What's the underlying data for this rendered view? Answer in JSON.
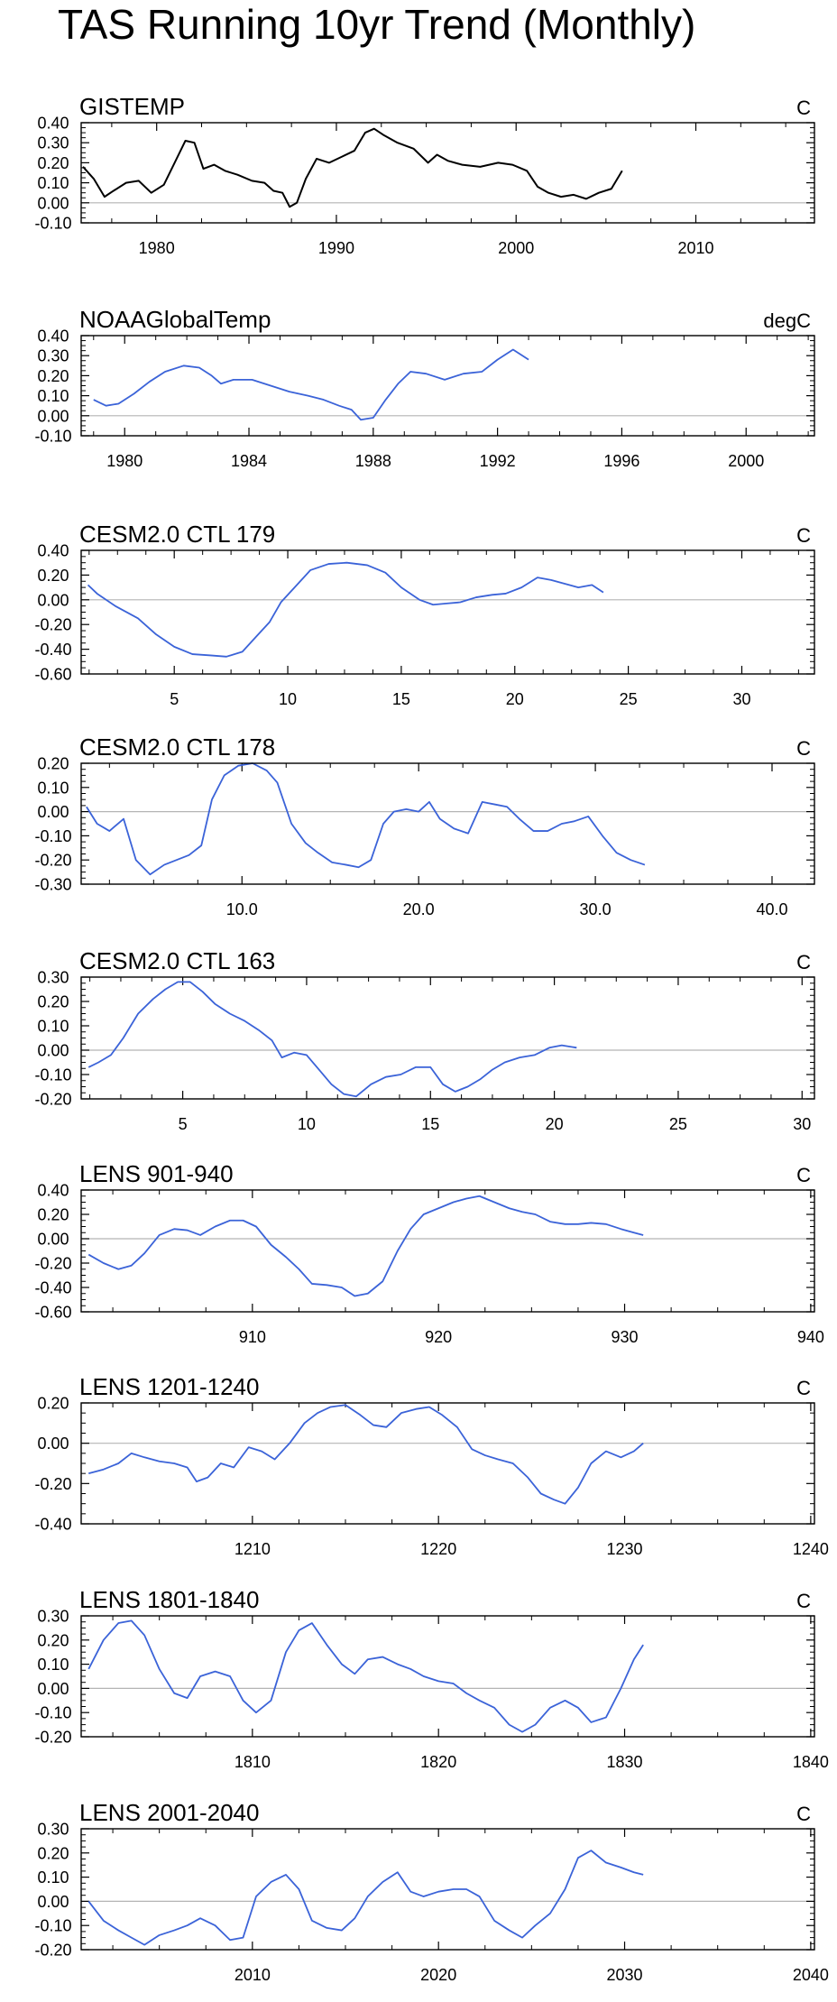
{
  "title": "TAS Running 10yr Trend (Monthly)",
  "colors": {
    "observed_line": "#000000",
    "model_line": "#3b63d8",
    "zero_line": "#b4b4b4",
    "axis": "#000000"
  },
  "chart_data": [
    {
      "type": "line",
      "title": "GISTEMP",
      "units": "C",
      "xlim": [
        1975.8,
        2016.6
      ],
      "ylim": [
        -0.1,
        0.4
      ],
      "xticks": [
        1980,
        1990,
        2000,
        2010
      ],
      "xtick_labels": [
        "1980",
        "1990",
        "2000",
        "2010"
      ],
      "yticks": [
        -0.1,
        0,
        0.1,
        0.2,
        0.3,
        0.4
      ],
      "ytick_labels": [
        "-0.10",
        "0.00",
        "0.10",
        "0.20",
        "0.30",
        "0.40"
      ],
      "line": "observed",
      "x": [
        1975.9,
        1976.5,
        1977.1,
        1977.6,
        1978.3,
        1979.0,
        1979.7,
        1980.4,
        1981.0,
        1981.6,
        1982.1,
        1982.6,
        1983.2,
        1983.8,
        1984.5,
        1985.3,
        1986.0,
        1986.5,
        1987.0,
        1987.4,
        1987.8,
        1988.3,
        1988.9,
        1989.6,
        1990.3,
        1991.0,
        1991.6,
        1992.1,
        1992.6,
        1993.4,
        1994.3,
        1995.1,
        1995.6,
        1996.2,
        1997.0,
        1998.0,
        1999.0,
        1999.8,
        2000.6,
        2001.2,
        2001.8,
        2002.5,
        2003.2,
        2003.9,
        2004.6,
        2005.3,
        2005.9
      ],
      "y": [
        0.18,
        0.12,
        0.03,
        0.06,
        0.1,
        0.11,
        0.05,
        0.09,
        0.2,
        0.31,
        0.3,
        0.17,
        0.19,
        0.16,
        0.14,
        0.11,
        0.1,
        0.06,
        0.05,
        -0.02,
        0.0,
        0.12,
        0.22,
        0.2,
        0.23,
        0.26,
        0.35,
        0.37,
        0.34,
        0.3,
        0.27,
        0.2,
        0.24,
        0.21,
        0.19,
        0.18,
        0.2,
        0.19,
        0.16,
        0.08,
        0.05,
        0.03,
        0.04,
        0.02,
        0.05,
        0.07,
        0.16
      ]
    },
    {
      "type": "line",
      "title": "NOAAGlobalTemp",
      "units": "degC",
      "xlim": [
        1978.6,
        2002.2
      ],
      "ylim": [
        -0.1,
        0.4
      ],
      "xticks": [
        1980,
        1984,
        1988,
        1992,
        1996,
        2000
      ],
      "xtick_labels": [
        "1980",
        "1984",
        "1988",
        "1992",
        "1996",
        "2000"
      ],
      "yticks": [
        -0.1,
        0,
        0.1,
        0.2,
        0.3,
        0.4
      ],
      "ytick_labels": [
        "-0.10",
        "0.00",
        "0.10",
        "0.20",
        "0.30",
        "0.40"
      ],
      "line": "model",
      "x": [
        1979.0,
        1979.4,
        1979.8,
        1980.3,
        1980.8,
        1981.3,
        1981.9,
        1982.4,
        1982.8,
        1983.1,
        1983.5,
        1984.1,
        1984.7,
        1985.3,
        1985.9,
        1986.4,
        1986.9,
        1987.3,
        1987.6,
        1988.0,
        1988.4,
        1988.8,
        1989.2,
        1989.7,
        1990.3,
        1990.9,
        1991.5,
        1992.0,
        1992.5,
        1993.0
      ],
      "y": [
        0.08,
        0.05,
        0.06,
        0.11,
        0.17,
        0.22,
        0.25,
        0.24,
        0.2,
        0.16,
        0.18,
        0.18,
        0.15,
        0.12,
        0.1,
        0.08,
        0.05,
        0.03,
        -0.02,
        -0.01,
        0.08,
        0.16,
        0.22,
        0.21,
        0.18,
        0.21,
        0.22,
        0.28,
        0.33,
        0.28
      ]
    },
    {
      "type": "line",
      "title": "CESM2.0 CTL 179",
      "units": "C",
      "xlim": [
        0.9,
        33.2
      ],
      "ylim": [
        -0.6,
        0.4
      ],
      "xticks": [
        5,
        10,
        15,
        20,
        25,
        30
      ],
      "xtick_labels": [
        "5",
        "10",
        "15",
        "20",
        "25",
        "30"
      ],
      "yticks": [
        -0.6,
        -0.4,
        -0.2,
        0,
        0.2,
        0.4
      ],
      "ytick_labels": [
        "-0.60",
        "-0.40",
        "-0.20",
        "0.00",
        "0.20",
        "0.40"
      ],
      "line": "model",
      "x": [
        1.2,
        1.6,
        2.4,
        3.4,
        4.2,
        5.0,
        5.8,
        6.6,
        7.3,
        8.0,
        8.6,
        9.2,
        9.7,
        10.3,
        11.0,
        11.8,
        12.6,
        13.5,
        14.3,
        15.0,
        15.8,
        16.4,
        17.0,
        17.6,
        18.3,
        19.0,
        19.6,
        20.3,
        21.0,
        21.6,
        22.2,
        22.8,
        23.4,
        23.9
      ],
      "y": [
        0.12,
        0.05,
        -0.05,
        -0.15,
        -0.28,
        -0.38,
        -0.44,
        -0.45,
        -0.46,
        -0.42,
        -0.3,
        -0.18,
        -0.02,
        0.1,
        0.24,
        0.29,
        0.3,
        0.28,
        0.22,
        0.1,
        0.0,
        -0.04,
        -0.03,
        -0.02,
        0.02,
        0.04,
        0.05,
        0.1,
        0.18,
        0.16,
        0.13,
        0.1,
        0.12,
        0.06
      ]
    },
    {
      "type": "line",
      "title": "CESM2.0 CTL 178",
      "units": "C",
      "xlim": [
        0.9,
        42.4
      ],
      "ylim": [
        -0.3,
        0.2
      ],
      "xticks": [
        10,
        20,
        30,
        40
      ],
      "xtick_labels": [
        "10.0",
        "20.0",
        "30.0",
        "40.0"
      ],
      "yticks": [
        -0.3,
        -0.2,
        -0.1,
        0,
        0.1,
        0.2
      ],
      "ytick_labels": [
        "-0.30",
        "-0.20",
        "-0.10",
        "0.00",
        "0.10",
        "0.20"
      ],
      "line": "model",
      "x": [
        1.2,
        1.8,
        2.5,
        3.3,
        4.0,
        4.8,
        5.6,
        6.3,
        7.0,
        7.7,
        8.3,
        9.0,
        9.8,
        10.6,
        11.4,
        12.0,
        12.8,
        13.6,
        14.3,
        15.1,
        15.9,
        16.6,
        17.3,
        18.0,
        18.6,
        19.3,
        20.0,
        20.6,
        21.2,
        22.0,
        22.8,
        23.6,
        24.3,
        25.0,
        25.7,
        26.5,
        27.3,
        28.1,
        28.8,
        29.6,
        30.4,
        31.2,
        32.0,
        32.8
      ],
      "y": [
        0.02,
        -0.05,
        -0.08,
        -0.03,
        -0.2,
        -0.26,
        -0.22,
        -0.2,
        -0.18,
        -0.14,
        0.05,
        0.15,
        0.19,
        0.2,
        0.17,
        0.12,
        -0.05,
        -0.13,
        -0.17,
        -0.21,
        -0.22,
        -0.23,
        -0.2,
        -0.05,
        0.0,
        0.01,
        0.0,
        0.04,
        -0.03,
        -0.07,
        -0.09,
        0.04,
        0.03,
        0.02,
        -0.03,
        -0.08,
        -0.08,
        -0.05,
        -0.04,
        -0.02,
        -0.1,
        -0.17,
        -0.2,
        -0.22
      ]
    },
    {
      "type": "line",
      "title": "CESM2.0 CTL 163",
      "units": "C",
      "xlim": [
        0.9,
        30.5
      ],
      "ylim": [
        -0.2,
        0.3
      ],
      "xticks": [
        5,
        10,
        15,
        20,
        25,
        30
      ],
      "xtick_labels": [
        "5",
        "10",
        "15",
        "20",
        "25",
        "30"
      ],
      "yticks": [
        -0.2,
        -0.1,
        0,
        0.1,
        0.2,
        0.3
      ],
      "ytick_labels": [
        "-0.20",
        "-0.10",
        "0.00",
        "0.10",
        "0.20",
        "0.30"
      ],
      "line": "model",
      "x": [
        1.2,
        1.6,
        2.1,
        2.6,
        3.2,
        3.8,
        4.3,
        4.8,
        5.3,
        5.8,
        6.3,
        6.9,
        7.5,
        8.1,
        8.6,
        9.0,
        9.5,
        10.0,
        10.5,
        11.0,
        11.5,
        12.0,
        12.6,
        13.2,
        13.8,
        14.4,
        15.0,
        15.5,
        16.0,
        16.5,
        17.0,
        17.5,
        18.0,
        18.6,
        19.2,
        19.8,
        20.3,
        20.9
      ],
      "y": [
        -0.07,
        -0.05,
        -0.02,
        0.05,
        0.15,
        0.21,
        0.25,
        0.28,
        0.28,
        0.24,
        0.19,
        0.15,
        0.12,
        0.08,
        0.04,
        -0.03,
        -0.01,
        -0.02,
        -0.08,
        -0.14,
        -0.18,
        -0.19,
        -0.14,
        -0.11,
        -0.1,
        -0.07,
        -0.07,
        -0.14,
        -0.17,
        -0.15,
        -0.12,
        -0.08,
        -0.05,
        -0.03,
        -0.02,
        0.01,
        0.02,
        0.01
      ]
    },
    {
      "type": "line",
      "title": "LENS 901-940",
      "units": "C",
      "xlim": [
        900.8,
        940.2
      ],
      "ylim": [
        -0.6,
        0.4
      ],
      "xticks": [
        910,
        920,
        930,
        940
      ],
      "xtick_labels": [
        "910",
        "920",
        "930",
        "940"
      ],
      "yticks": [
        -0.6,
        -0.4,
        -0.2,
        0,
        0.2,
        0.4
      ],
      "ytick_labels": [
        "-0.60",
        "-0.40",
        "-0.20",
        "0.00",
        "0.20",
        "0.40"
      ],
      "line": "model",
      "x": [
        901.2,
        902.0,
        902.8,
        903.5,
        904.2,
        905.0,
        905.8,
        906.5,
        907.2,
        908.0,
        908.8,
        909.5,
        910.2,
        911.0,
        911.8,
        912.5,
        913.2,
        914.0,
        914.8,
        915.5,
        916.2,
        917.0,
        917.8,
        918.5,
        919.2,
        920.0,
        920.8,
        921.5,
        922.2,
        923.0,
        923.8,
        924.5,
        925.2,
        926.0,
        926.8,
        927.5,
        928.2,
        929.0,
        929.8,
        930.5,
        931.0
      ],
      "y": [
        -0.13,
        -0.2,
        -0.25,
        -0.22,
        -0.12,
        0.03,
        0.08,
        0.07,
        0.03,
        0.1,
        0.15,
        0.15,
        0.1,
        -0.05,
        -0.15,
        -0.25,
        -0.37,
        -0.38,
        -0.4,
        -0.47,
        -0.45,
        -0.35,
        -0.1,
        0.08,
        0.2,
        0.25,
        0.3,
        0.33,
        0.35,
        0.3,
        0.25,
        0.22,
        0.2,
        0.14,
        0.12,
        0.12,
        0.13,
        0.12,
        0.08,
        0.05,
        0.03
      ]
    },
    {
      "type": "line",
      "title": "LENS 1201-1240",
      "units": "C",
      "xlim": [
        1200.8,
        1240.2
      ],
      "ylim": [
        -0.4,
        0.2
      ],
      "xticks": [
        1210,
        1220,
        1230,
        1240
      ],
      "xtick_labels": [
        "1210",
        "1220",
        "1230",
        "1240"
      ],
      "yticks": [
        -0.4,
        -0.2,
        0,
        0.2
      ],
      "ytick_labels": [
        "-0.40",
        "-0.20",
        "0.00",
        "0.20"
      ],
      "line": "model",
      "x": [
        1201.2,
        1202.0,
        1202.8,
        1203.5,
        1204.2,
        1205.0,
        1205.8,
        1206.5,
        1207.0,
        1207.6,
        1208.3,
        1209.0,
        1209.8,
        1210.5,
        1211.2,
        1212.0,
        1212.8,
        1213.5,
        1214.2,
        1215.0,
        1215.8,
        1216.5,
        1217.2,
        1218.0,
        1218.8,
        1219.5,
        1220.2,
        1221.0,
        1221.8,
        1222.5,
        1223.2,
        1224.0,
        1224.8,
        1225.5,
        1226.2,
        1226.8,
        1227.5,
        1228.2,
        1229.0,
        1229.8,
        1230.5,
        1231.0
      ],
      "y": [
        -0.15,
        -0.13,
        -0.1,
        -0.05,
        -0.07,
        -0.09,
        -0.1,
        -0.12,
        -0.19,
        -0.17,
        -0.1,
        -0.12,
        -0.02,
        -0.04,
        -0.08,
        0.0,
        0.1,
        0.15,
        0.18,
        0.19,
        0.14,
        0.09,
        0.08,
        0.15,
        0.17,
        0.18,
        0.14,
        0.08,
        -0.03,
        -0.06,
        -0.08,
        -0.1,
        -0.17,
        -0.25,
        -0.28,
        -0.3,
        -0.22,
        -0.1,
        -0.04,
        -0.07,
        -0.04,
        0.0
      ]
    },
    {
      "type": "line",
      "title": "LENS 1801-1840",
      "units": "C",
      "xlim": [
        1800.8,
        1840.2
      ],
      "ylim": [
        -0.2,
        0.3
      ],
      "xticks": [
        1810,
        1820,
        1830,
        1840
      ],
      "xtick_labels": [
        "1810",
        "1820",
        "1830",
        "1840"
      ],
      "yticks": [
        -0.2,
        -0.1,
        0,
        0.1,
        0.2,
        0.3
      ],
      "ytick_labels": [
        "-0.20",
        "-0.10",
        "0.00",
        "0.10",
        "0.20",
        "0.30"
      ],
      "line": "model",
      "x": [
        1801.2,
        1802.0,
        1802.8,
        1803.5,
        1804.2,
        1805.0,
        1805.8,
        1806.5,
        1807.2,
        1808.0,
        1808.8,
        1809.5,
        1810.2,
        1811.0,
        1811.8,
        1812.5,
        1813.2,
        1814.0,
        1814.8,
        1815.5,
        1816.2,
        1817.0,
        1817.8,
        1818.5,
        1819.2,
        1820.0,
        1820.8,
        1821.5,
        1822.2,
        1823.0,
        1823.8,
        1824.5,
        1825.2,
        1826.0,
        1826.8,
        1827.5,
        1828.2,
        1829.0,
        1829.8,
        1830.5,
        1831.0
      ],
      "y": [
        0.08,
        0.2,
        0.27,
        0.28,
        0.22,
        0.08,
        -0.02,
        -0.04,
        0.05,
        0.07,
        0.05,
        -0.05,
        -0.1,
        -0.05,
        0.15,
        0.24,
        0.27,
        0.18,
        0.1,
        0.06,
        0.12,
        0.13,
        0.1,
        0.08,
        0.05,
        0.03,
        0.02,
        -0.02,
        -0.05,
        -0.08,
        -0.15,
        -0.18,
        -0.15,
        -0.08,
        -0.05,
        -0.08,
        -0.14,
        -0.12,
        0.0,
        0.12,
        0.18
      ]
    },
    {
      "type": "line",
      "title": "LENS 2001-2040",
      "units": "C",
      "xlim": [
        2000.8,
        2040.2
      ],
      "ylim": [
        -0.2,
        0.3
      ],
      "xticks": [
        2010,
        2020,
        2030,
        2040
      ],
      "xtick_labels": [
        "2010",
        "2020",
        "2030",
        "2040"
      ],
      "yticks": [
        -0.2,
        -0.1,
        0,
        0.1,
        0.2,
        0.3
      ],
      "ytick_labels": [
        "-0.20",
        "-0.10",
        "0.00",
        "0.10",
        "0.20",
        "0.30"
      ],
      "line": "model",
      "x": [
        2001.2,
        2002.0,
        2002.8,
        2003.5,
        2004.2,
        2005.0,
        2005.8,
        2006.5,
        2007.2,
        2008.0,
        2008.8,
        2009.5,
        2010.2,
        2011.0,
        2011.8,
        2012.5,
        2013.2,
        2014.0,
        2014.8,
        2015.5,
        2016.2,
        2017.0,
        2017.8,
        2018.5,
        2019.2,
        2020.0,
        2020.8,
        2021.5,
        2022.2,
        2023.0,
        2023.8,
        2024.5,
        2025.2,
        2026.0,
        2026.8,
        2027.5,
        2028.2,
        2029.0,
        2029.8,
        2030.5,
        2031.0
      ],
      "y": [
        0.0,
        -0.08,
        -0.12,
        -0.15,
        -0.18,
        -0.14,
        -0.12,
        -0.1,
        -0.07,
        -0.1,
        -0.16,
        -0.15,
        0.02,
        0.08,
        0.11,
        0.05,
        -0.08,
        -0.11,
        -0.12,
        -0.07,
        0.02,
        0.08,
        0.12,
        0.04,
        0.02,
        0.04,
        0.05,
        0.05,
        0.02,
        -0.08,
        -0.12,
        -0.15,
        -0.1,
        -0.05,
        0.05,
        0.18,
        0.21,
        0.16,
        0.14,
        0.12,
        0.11
      ]
    }
  ]
}
